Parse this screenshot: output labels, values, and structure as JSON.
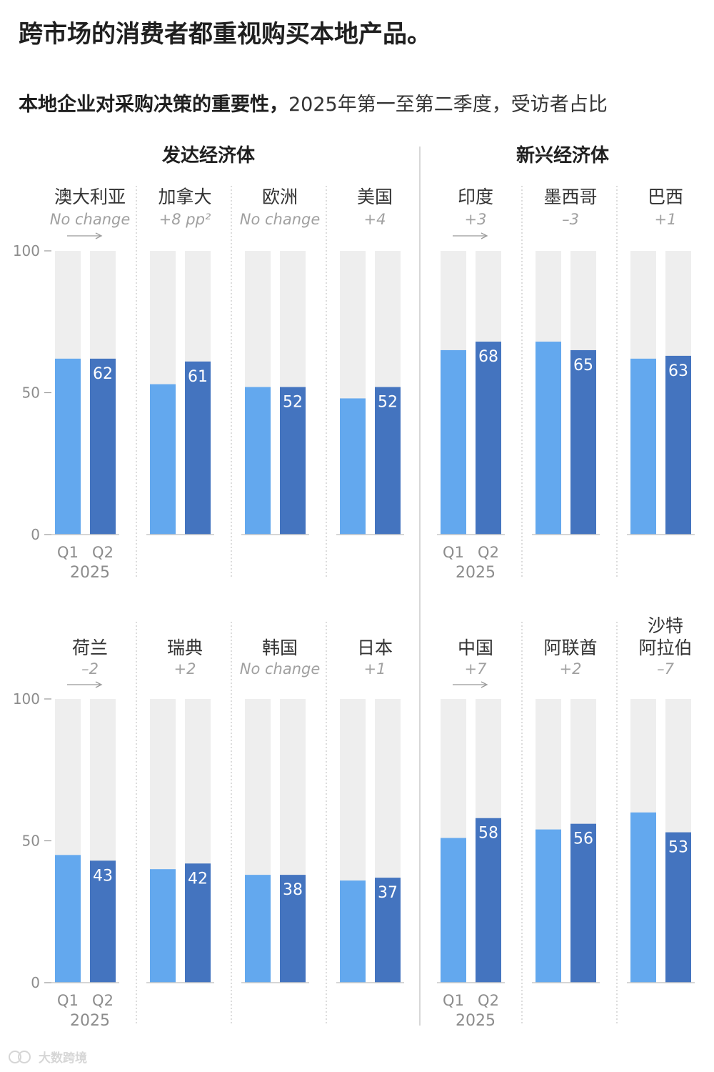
{
  "title": "跨市场的消费者都重视购买本地产品。",
  "subtitle": {
    "bold": "本地企业对采购决策的重要性，",
    "rest": "2025年第一至第二季度，受访者占比"
  },
  "groups": {
    "developed": "发达经济体",
    "emerging": "新兴经济体"
  },
  "watermark": "大数跨境",
  "colors": {
    "q1": "#63a8ee",
    "q2": "#4474bf",
    "track": "#eeeeee",
    "axis": "#999999",
    "text": "#333333",
    "change": "#a0a0a0",
    "bar_label": "#ffffff"
  },
  "chart_data": {
    "type": "bar",
    "title": "本地企业对采购决策的重要性",
    "subtitle": "2025年第一至第二季度，受访者占比",
    "series_names": [
      "Q1",
      "Q2"
    ],
    "year_label": "2025",
    "ylim": [
      0,
      100
    ],
    "yticks": [
      0,
      50,
      100
    ],
    "rows": [
      {
        "markets": [
          {
            "name": "澳大利亚",
            "change": "No change",
            "group": "developed",
            "q1": 62,
            "q2": 62
          },
          {
            "name": "加拿大",
            "change": "+8 pp²",
            "group": "developed",
            "q1": 53,
            "q2": 61
          },
          {
            "name": "欧洲",
            "change": "No change",
            "group": "developed",
            "q1": 52,
            "q2": 52
          },
          {
            "name": "美国",
            "change": "+4",
            "group": "developed",
            "q1": 48,
            "q2": 52
          },
          {
            "name": "印度",
            "change": "+3",
            "group": "emerging",
            "q1": 65,
            "q2": 68
          },
          {
            "name": "墨西哥",
            "change": "–3",
            "group": "emerging",
            "q1": 68,
            "q2": 65
          },
          {
            "name": "巴西",
            "change": "+1",
            "group": "emerging",
            "q1": 62,
            "q2": 63
          }
        ]
      },
      {
        "markets": [
          {
            "name": "荷兰",
            "change": "–2",
            "group": "developed",
            "q1": 45,
            "q2": 43
          },
          {
            "name": "瑞典",
            "change": "+2",
            "group": "developed",
            "q1": 40,
            "q2": 42
          },
          {
            "name": "韩国",
            "change": "No change",
            "group": "developed",
            "q1": 38,
            "q2": 38
          },
          {
            "name": "日本",
            "change": "+1",
            "group": "developed",
            "q1": 36,
            "q2": 37
          },
          {
            "name": "中国",
            "change": "+7",
            "group": "emerging",
            "q1": 51,
            "q2": 58
          },
          {
            "name": "阿联酋",
            "change": "+2",
            "group": "emerging",
            "q1": 54,
            "q2": 56
          },
          {
            "name": "沙特阿拉伯",
            "name_lines": [
              "沙特",
              "阿拉伯"
            ],
            "change": "–7",
            "group": "emerging",
            "q1": 60,
            "q2": 53
          }
        ]
      }
    ]
  }
}
